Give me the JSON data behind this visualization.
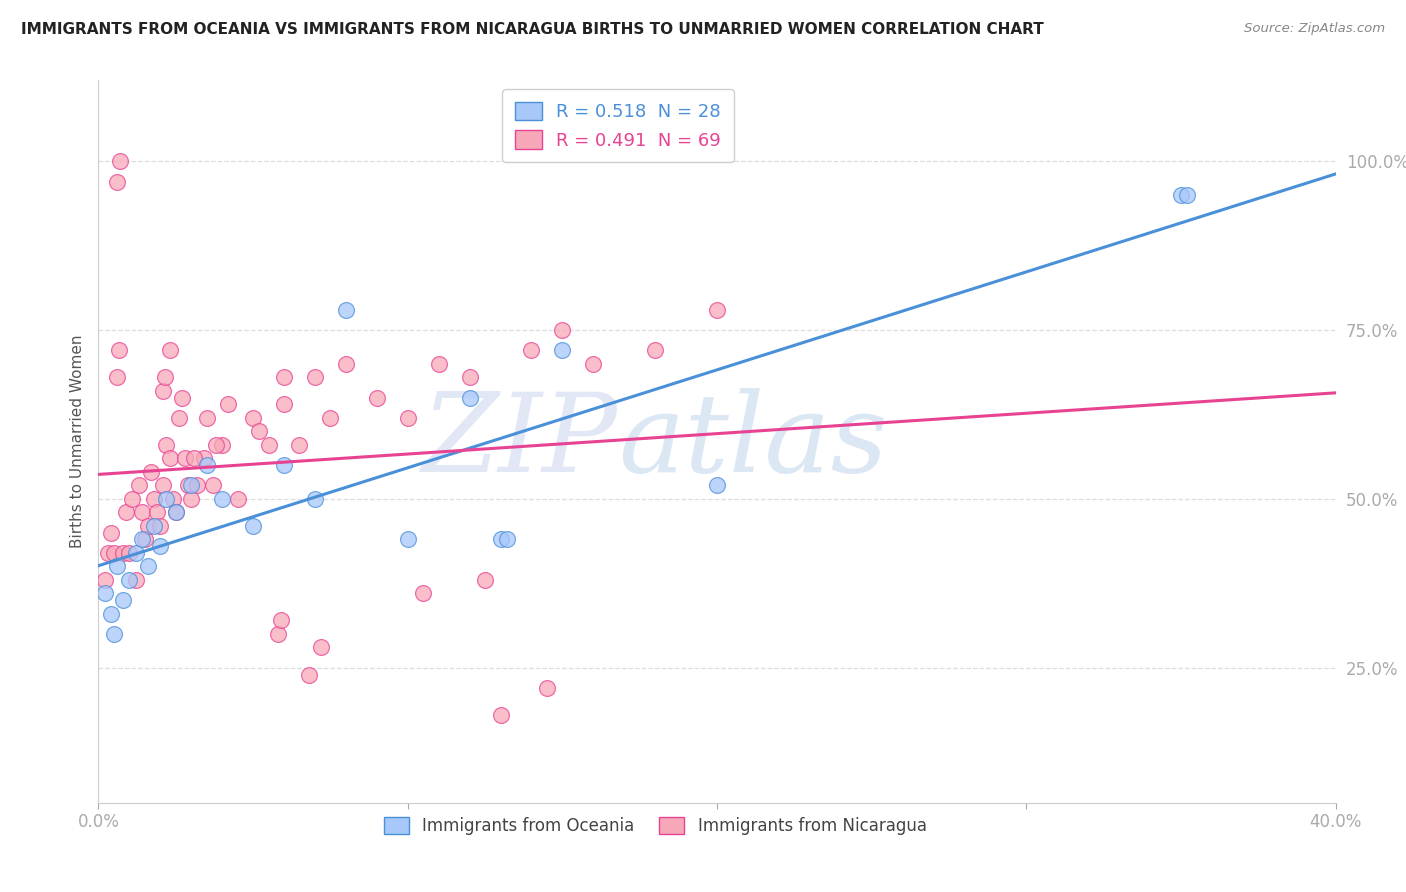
{
  "title": "IMMIGRANTS FROM OCEANIA VS IMMIGRANTS FROM NICARAGUA BIRTHS TO UNMARRIED WOMEN CORRELATION CHART",
  "source": "Source: ZipAtlas.com",
  "xlabel_oceania": "Immigrants from Oceania",
  "xlabel_nicaragua": "Immigrants from Nicaragua",
  "ylabel": "Births to Unmarried Women",
  "xlim": [
    0.0,
    40.0
  ],
  "ylim": [
    5.0,
    110.0
  ],
  "y_ticks": [
    25.0,
    50.0,
    75.0,
    100.0
  ],
  "y_tick_labels": [
    "25.0%",
    "50.0%",
    "75.0%",
    "100.0%"
  ],
  "color_oceania": "#a8c8fa",
  "color_nicaragua": "#f7a8b8",
  "line_color_oceania": "#4a90d9",
  "line_color_nicaragua": "#e84393",
  "R_oceania": 0.518,
  "N_oceania": 28,
  "R_nicaragua": 0.491,
  "N_nicaragua": 69,
  "watermark_zip": "ZIP",
  "watermark_atlas": "atlas",
  "watermark_color_zip": "#c8d8f0",
  "watermark_color_atlas": "#b8cce8",
  "scatter_oceania_x": [
    0.2,
    0.4,
    0.5,
    0.6,
    0.8,
    1.0,
    1.2,
    1.4,
    1.6,
    1.8,
    2.0,
    2.2,
    2.5,
    3.0,
    3.5,
    4.0,
    5.0,
    6.0,
    7.0,
    8.0,
    10.0,
    12.0,
    13.0,
    13.2,
    15.0,
    20.0,
    35.0,
    35.2
  ],
  "scatter_oceania_y": [
    36.0,
    33.0,
    30.0,
    40.0,
    35.0,
    38.0,
    42.0,
    44.0,
    40.0,
    46.0,
    43.0,
    50.0,
    48.0,
    52.0,
    55.0,
    50.0,
    46.0,
    55.0,
    50.0,
    78.0,
    44.0,
    65.0,
    44.0,
    44.0,
    72.0,
    52.0,
    95.0,
    95.0
  ],
  "scatter_nicaragua_x": [
    0.2,
    0.3,
    0.4,
    0.5,
    0.6,
    0.7,
    0.8,
    0.9,
    1.0,
    1.1,
    1.2,
    1.3,
    1.4,
    1.5,
    1.6,
    1.7,
    1.8,
    1.9,
    2.0,
    2.1,
    2.2,
    2.3,
    2.4,
    2.5,
    2.6,
    2.7,
    2.8,
    2.9,
    3.0,
    3.2,
    3.4,
    3.5,
    3.7,
    4.0,
    4.5,
    5.0,
    5.5,
    6.0,
    6.5,
    7.0,
    0.6,
    0.65,
    2.1,
    2.15,
    2.3,
    3.1,
    3.8,
    4.2,
    5.2,
    6.0,
    7.5,
    8.0,
    9.0,
    10.0,
    11.0,
    12.0,
    14.0,
    15.0,
    16.0,
    18.0,
    20.0,
    6.8,
    7.2,
    5.8,
    5.9,
    10.5,
    12.5,
    14.5,
    13.0
  ],
  "scatter_nicaragua_y": [
    38.0,
    42.0,
    45.0,
    42.0,
    97.0,
    100.0,
    42.0,
    48.0,
    42.0,
    50.0,
    38.0,
    52.0,
    48.0,
    44.0,
    46.0,
    54.0,
    50.0,
    48.0,
    46.0,
    52.0,
    58.0,
    56.0,
    50.0,
    48.0,
    62.0,
    65.0,
    56.0,
    52.0,
    50.0,
    52.0,
    56.0,
    62.0,
    52.0,
    58.0,
    50.0,
    62.0,
    58.0,
    64.0,
    58.0,
    68.0,
    68.0,
    72.0,
    66.0,
    68.0,
    72.0,
    56.0,
    58.0,
    64.0,
    60.0,
    68.0,
    62.0,
    70.0,
    65.0,
    62.0,
    70.0,
    68.0,
    72.0,
    75.0,
    70.0,
    72.0,
    78.0,
    24.0,
    28.0,
    30.0,
    32.0,
    36.0,
    38.0,
    22.0,
    18.0
  ],
  "background_color": "#ffffff",
  "grid_color": "#dddddd"
}
